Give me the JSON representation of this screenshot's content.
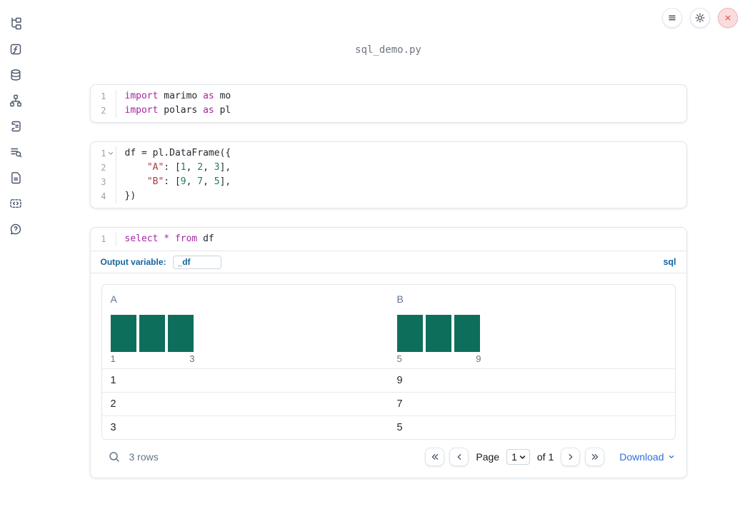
{
  "colors": {
    "histogram-bar": "#0e6e5c",
    "keyword": "#a626a4",
    "string": "#a93a38",
    "number": "#1c7e52",
    "sql-accent": "#15659d",
    "link": "#2d6fe1",
    "close-red": "#d85b5b"
  },
  "topbar": {
    "title": "sql_demo.py",
    "buttons": [
      {
        "name": "menu-icon"
      },
      {
        "name": "settings-gear-icon"
      },
      {
        "name": "close-icon"
      }
    ]
  },
  "sidebar": [
    {
      "name": "file-explorer"
    },
    {
      "name": "functions"
    },
    {
      "name": "data-sources"
    },
    {
      "name": "dependency-graph"
    },
    {
      "name": "scratchpad"
    },
    {
      "name": "table-of-contents"
    },
    {
      "name": "documentation"
    },
    {
      "name": "snippets"
    },
    {
      "name": "help"
    }
  ],
  "cells": [
    {
      "type": "python",
      "lines": [
        {
          "num": "1",
          "tokens": [
            [
              "kw",
              "import"
            ],
            [
              "pl",
              " marimo "
            ],
            [
              "kw",
              "as"
            ],
            [
              "pl",
              " mo"
            ]
          ]
        },
        {
          "num": "2",
          "tokens": [
            [
              "kw",
              "import"
            ],
            [
              "pl",
              " polars "
            ],
            [
              "kw",
              "as"
            ],
            [
              "pl",
              " pl"
            ]
          ]
        }
      ]
    },
    {
      "type": "python",
      "lines": [
        {
          "num": "1",
          "fold": true,
          "tokens": [
            [
              "pl",
              "df = pl.DataFrame({"
            ]
          ]
        },
        {
          "num": "2",
          "tokens": [
            [
              "pl",
              "    "
            ],
            [
              "str",
              "\"A\""
            ],
            [
              "pl",
              ": ["
            ],
            [
              "num",
              "1"
            ],
            [
              "pl",
              ", "
            ],
            [
              "num",
              "2"
            ],
            [
              "pl",
              ", "
            ],
            [
              "num",
              "3"
            ],
            [
              "pl",
              "],"
            ]
          ]
        },
        {
          "num": "3",
          "tokens": [
            [
              "pl",
              "    "
            ],
            [
              "str",
              "\"B\""
            ],
            [
              "pl",
              ": ["
            ],
            [
              "num",
              "9"
            ],
            [
              "pl",
              ", "
            ],
            [
              "num",
              "7"
            ],
            [
              "pl",
              ", "
            ],
            [
              "num",
              "5"
            ],
            [
              "pl",
              "],"
            ]
          ]
        },
        {
          "num": "4",
          "tokens": [
            [
              "pl",
              "})"
            ]
          ]
        }
      ]
    },
    {
      "type": "sql",
      "lines": [
        {
          "num": "1",
          "tokens": [
            [
              "kw",
              "select"
            ],
            [
              "pl",
              " "
            ],
            [
              "kw",
              "*"
            ],
            [
              "pl",
              " "
            ],
            [
              "kw",
              "from"
            ],
            [
              "pl",
              " df"
            ]
          ]
        }
      ],
      "toolbar": {
        "label": "Output variable:",
        "value": "_df",
        "language": "sql"
      }
    }
  ],
  "table": {
    "columns": [
      {
        "label": "A",
        "histogram": {
          "bars": [
            1,
            1,
            1
          ],
          "min": "1",
          "max": "3"
        }
      },
      {
        "label": "B",
        "histogram": {
          "bars": [
            1,
            1,
            1
          ],
          "min": "5",
          "max": "9"
        }
      }
    ],
    "rows": [
      [
        "1",
        "9"
      ],
      [
        "2",
        "7"
      ],
      [
        "3",
        "5"
      ]
    ],
    "footer": {
      "row_count": "3 rows",
      "page_label": "Page",
      "page_value": "1",
      "of_label": "of 1",
      "download_label": "Download"
    }
  }
}
